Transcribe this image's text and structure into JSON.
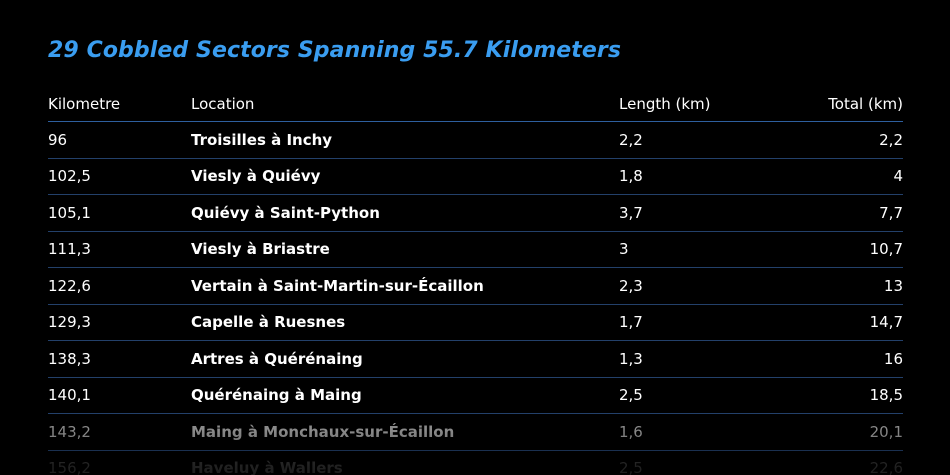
{
  "title": "29 Cobbled Sectors Spanning 55.7 Kilometers",
  "table": {
    "headers": {
      "kilometre": "Kilometre",
      "location": "Location",
      "length": "Length (km)",
      "total": "Total (km)"
    },
    "rows": [
      {
        "kilometre": "96",
        "location": "Troisilles à Inchy",
        "length": "2,2",
        "total": "2,2"
      },
      {
        "kilometre": "102,5",
        "location": "Viesly à Quiévy",
        "length": "1,8",
        "total": "4"
      },
      {
        "kilometre": "105,1",
        "location": "Quiévy à Saint-Python",
        "length": "3,7",
        "total": "7,7"
      },
      {
        "kilometre": "111,3",
        "location": "Viesly à Briastre",
        "length": "3",
        "total": "10,7"
      },
      {
        "kilometre": "122,6",
        "location": "Vertain à Saint-Martin-sur-Écaillon",
        "length": "2,3",
        "total": "13"
      },
      {
        "kilometre": "129,3",
        "location": "Capelle à Ruesnes",
        "length": "1,7",
        "total": "14,7"
      },
      {
        "kilometre": "138,3",
        "location": "Artres à Quérénaing",
        "length": "1,3",
        "total": "16"
      },
      {
        "kilometre": "140,1",
        "location": "Quérénaing à Maing",
        "length": "2,5",
        "total": "18,5"
      },
      {
        "kilometre": "143,2",
        "location": "Maing à Monchaux-sur-Écaillon",
        "length": "1,6",
        "total": "20,1"
      },
      {
        "kilometre": "156,2",
        "location": "Haveluy à Wallers",
        "length": "2,5",
        "total": "22,6"
      }
    ]
  },
  "colors": {
    "background": "#000000",
    "title": "#3a9df0",
    "row_divider": "#23406a"
  }
}
